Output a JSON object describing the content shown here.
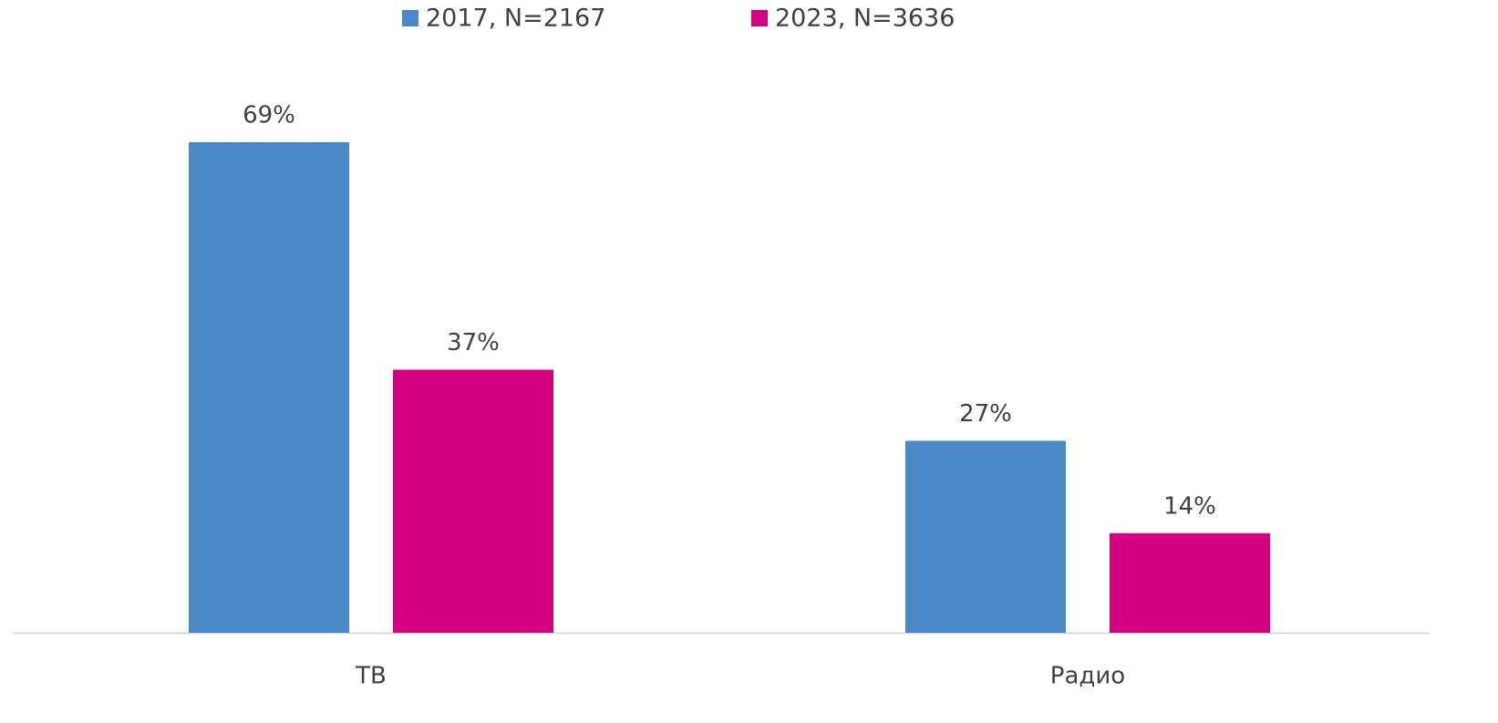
{
  "chart_data": {
    "type": "bar",
    "categories": [
      "ТВ",
      "Радио"
    ],
    "series": [
      {
        "name": "2017, N=2167",
        "color": "#4a89c8",
        "values": [
          69,
          27
        ],
        "value_labels": [
          "69%",
          "27%"
        ]
      },
      {
        "name": "2023, N=3636",
        "color": "#d4007f",
        "values": [
          37,
          14
        ],
        "value_labels": [
          "37%",
          "14%"
        ]
      }
    ]
  }
}
